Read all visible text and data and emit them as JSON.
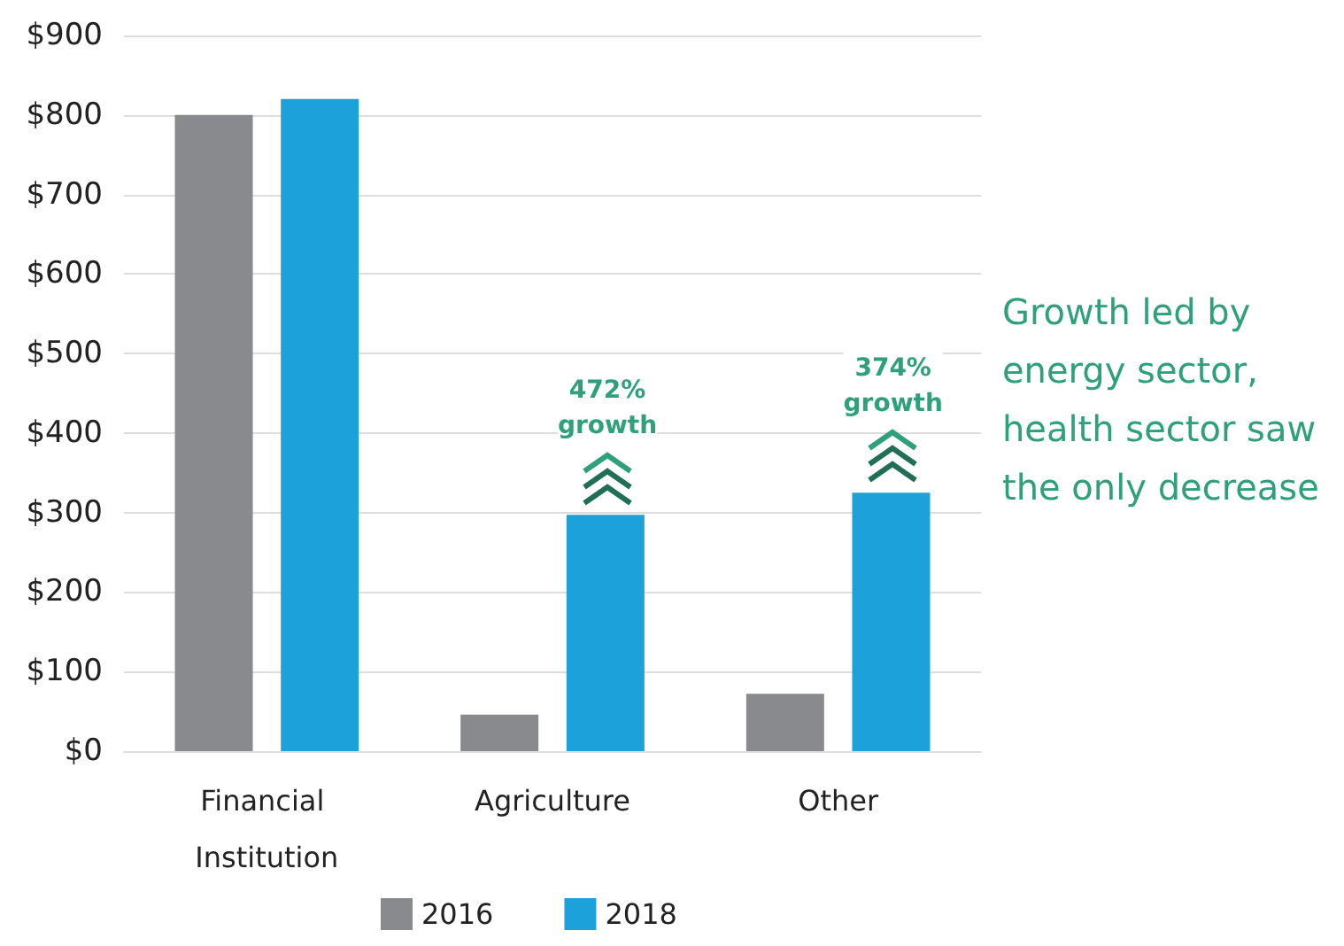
{
  "chart_data": {
    "type": "bar",
    "categories": [
      "Financial Institution",
      "Agriculture",
      "Other"
    ],
    "series": [
      {
        "name": "2016",
        "color": "#898a8e",
        "values": [
          800,
          46,
          72
        ]
      },
      {
        "name": "2018",
        "color": "#1da1db",
        "values": [
          820,
          297,
          325
        ]
      }
    ],
    "ylim": [
      0,
      900
    ],
    "yticks": [
      {
        "value": 0,
        "label": "$0"
      },
      {
        "value": 100,
        "label": "$100"
      },
      {
        "value": 200,
        "label": "$200"
      },
      {
        "value": 300,
        "label": "$300"
      },
      {
        "value": 400,
        "label": "$400"
      },
      {
        "value": 500,
        "label": "$500"
      },
      {
        "value": 600,
        "label": "$600"
      },
      {
        "value": 700,
        "label": "$700"
      },
      {
        "value": 800,
        "label": "$800"
      },
      {
        "value": 900,
        "label": "$900"
      }
    ],
    "grid": "y",
    "legend": "bottom",
    "annotations": [
      "472%\ngrowth",
      "374%\ngrowth",
      "Growth led by energy sector, health sector saw the only decrease"
    ]
  }
}
